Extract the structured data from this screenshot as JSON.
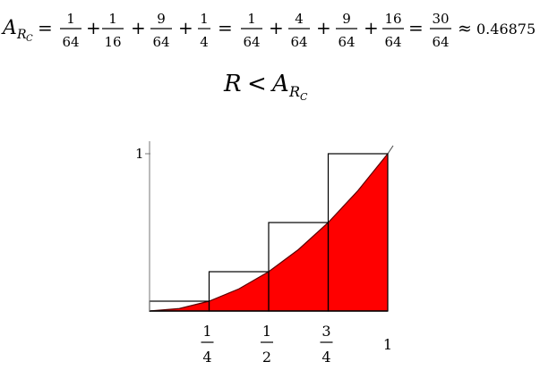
{
  "equation": {
    "lhs_symbol": "A",
    "lhs_subscript": "R",
    "lhs_subsubscript": "C",
    "equals": "=",
    "plus": "+",
    "term1": {
      "num": "1",
      "den": "64"
    },
    "term2": {
      "num": "1",
      "den": "16"
    },
    "term3": {
      "num": "9",
      "den": "64"
    },
    "term4": {
      "num": "1",
      "den": "4"
    },
    "term5": {
      "num": "1",
      "den": "64"
    },
    "term6": {
      "num": "4",
      "den": "64"
    },
    "term7": {
      "num": "9",
      "den": "64"
    },
    "term8": {
      "num": "16",
      "den": "64"
    },
    "term9": {
      "num": "30",
      "den": "64"
    },
    "approx": "≈",
    "approx_value": "0.46875"
  },
  "inequality": {
    "left": "R",
    "less_than": "<",
    "right_symbol": "A",
    "right_subscript": "R",
    "right_subsubscript": "C"
  },
  "chart_data": {
    "type": "area",
    "function": "y = x^2",
    "x": [
      0,
      0.125,
      0.25,
      0.375,
      0.5,
      0.625,
      0.75,
      0.875,
      1
    ],
    "y": [
      0,
      0.015625,
      0.0625,
      0.140625,
      0.25,
      0.390625,
      0.5625,
      0.765625,
      1
    ],
    "rectangles": [
      {
        "x0": 0,
        "x1": 0.25,
        "height": 0.0625
      },
      {
        "x0": 0.25,
        "x1": 0.5,
        "height": 0.25
      },
      {
        "x0": 0.5,
        "x1": 0.75,
        "height": 0.5625
      },
      {
        "x0": 0.75,
        "x1": 1,
        "height": 1
      }
    ],
    "xlim": [
      0,
      1
    ],
    "ylim": [
      0,
      1
    ],
    "x_ticks": [
      {
        "num": "1",
        "den": "4"
      },
      {
        "num": "1",
        "den": "2"
      },
      {
        "num": "3",
        "den": "4"
      },
      {
        "num": "1",
        "den": ""
      }
    ],
    "y_tick_label": "1",
    "fill_color": "#ff0000",
    "rect_stroke": "#000000",
    "axis_color": "#777777"
  }
}
